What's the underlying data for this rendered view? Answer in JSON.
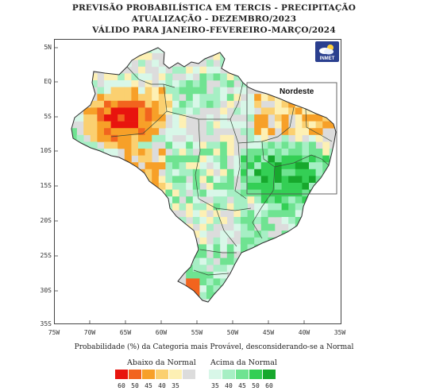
{
  "header": {
    "line1": "PREVISÃO PROBABILÍSTICA EM TERCIS - PRECIPITAÇÃO",
    "line2": "ATUALIZAÇÃO - DEZEMBRO/2023",
    "line3": "VÁLIDO PARA JANEIRO-FEVEREIRO-MARÇO/2024"
  },
  "axes": {
    "lat_labels": [
      "5N",
      "EQ",
      "5S",
      "10S",
      "15S",
      "20S",
      "25S",
      "30S",
      "35S"
    ],
    "lon_labels": [
      "75W",
      "70W",
      "65W",
      "60W",
      "55W",
      "50W",
      "45W",
      "40W",
      "35W"
    ]
  },
  "region_label": "Nordeste",
  "logo_text": "INMET",
  "caption": "Probabilidade (%) da Categoria mais Provável, desconsiderando-se a Normal",
  "legend": {
    "below_title": "Abaixo da Normal",
    "above_title": "Acima da Normal",
    "below": [
      {
        "label": "60",
        "color": "#e8140e"
      },
      {
        "label": "50",
        "color": "#f2641e"
      },
      {
        "label": "45",
        "color": "#f7a028"
      },
      {
        "label": "40",
        "color": "#fbd070"
      },
      {
        "label": "35",
        "color": "#fdf0b4"
      },
      {
        "label": "",
        "color": "#dcdcdc"
      }
    ],
    "above": [
      {
        "label": "35",
        "color": "#d8f7e8"
      },
      {
        "label": "40",
        "color": "#a6efc4"
      },
      {
        "label": "45",
        "color": "#6fe391"
      },
      {
        "label": "50",
        "color": "#34cf55"
      },
      {
        "label": "60",
        "color": "#17a82d"
      }
    ]
  }
}
